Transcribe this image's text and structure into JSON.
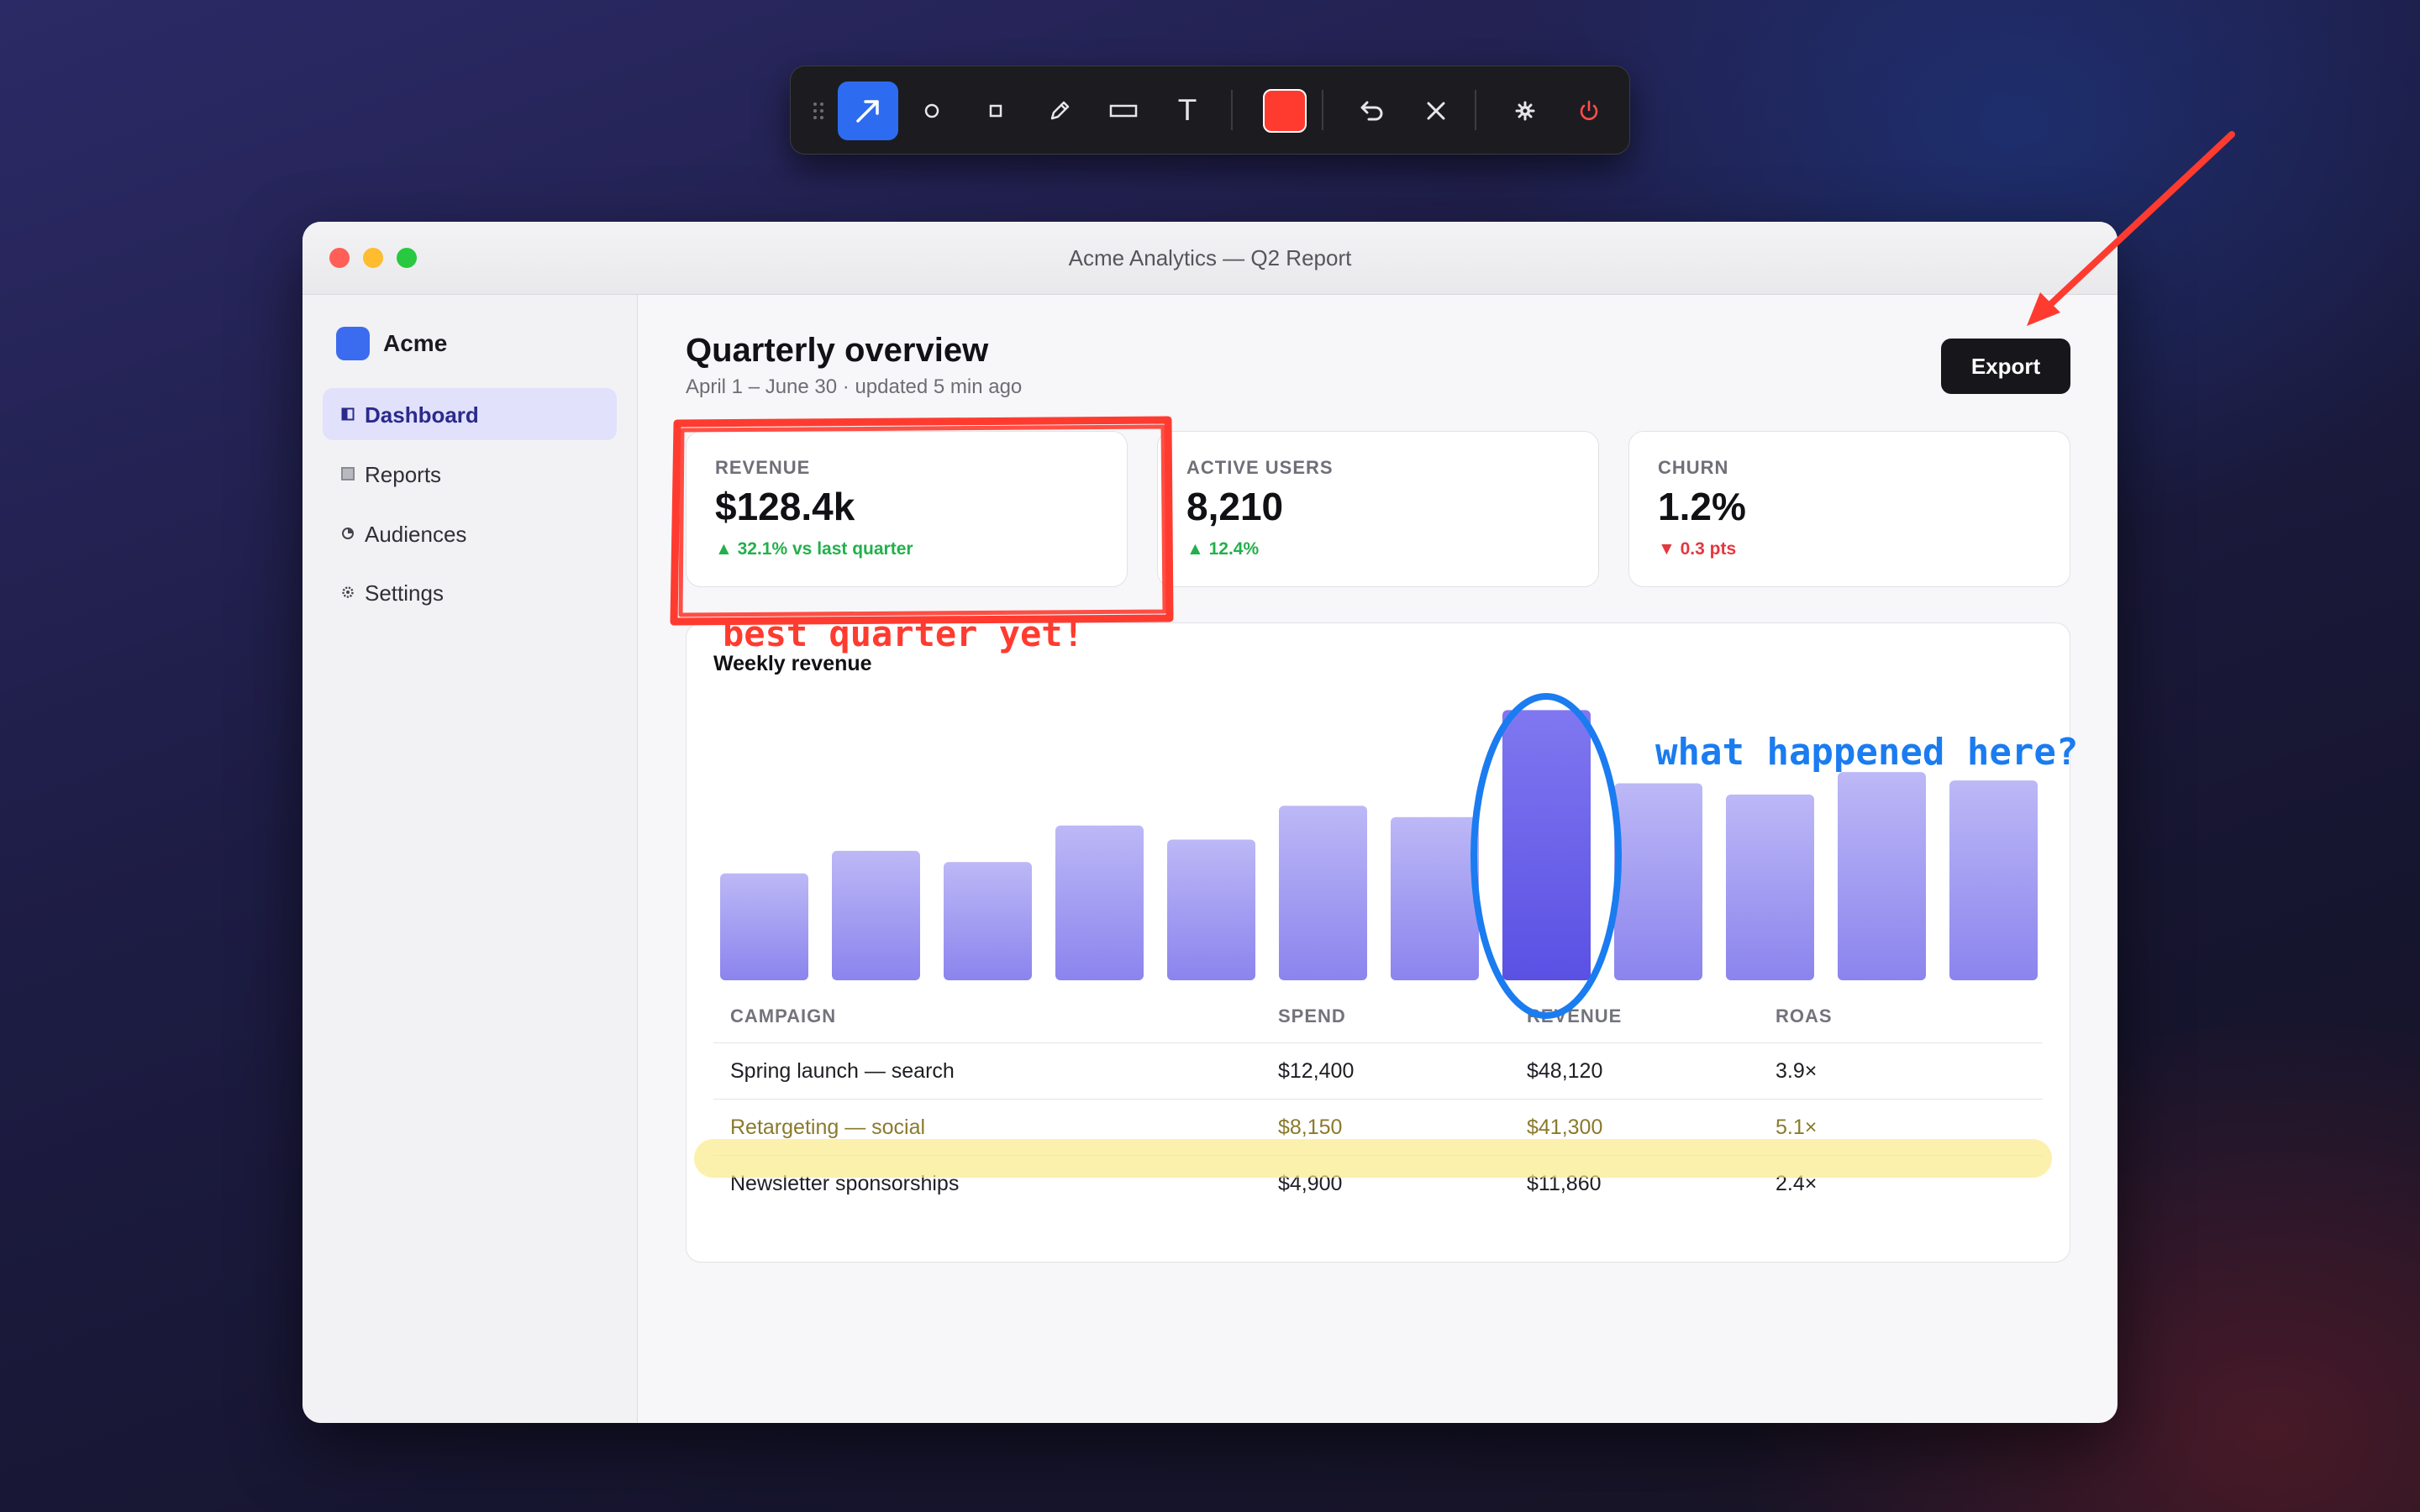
{
  "toolbar": {
    "tools": [
      "arrow-tool",
      "ellipse-tool",
      "square-tool",
      "pen-tool",
      "rectangle-tool",
      "text-tool"
    ],
    "active_tool": "arrow-tool",
    "text_tool_glyph": "T",
    "color_swatch": "#ff3b30",
    "actions": [
      "undo",
      "clear",
      "settings",
      "power"
    ]
  },
  "window": {
    "title": "Acme Analytics — Q2 Report",
    "traffic_lights": [
      "#ff5f57",
      "#febc2e",
      "#28c840"
    ]
  },
  "sidebar": {
    "brand": "Acme",
    "brand_color": "#3b6cf0",
    "items": [
      {
        "label": "Dashboard",
        "icon": "dashboard-icon",
        "active": true
      },
      {
        "label": "Reports",
        "icon": "reports-icon",
        "active": false
      },
      {
        "label": "Audiences",
        "icon": "audiences-icon",
        "active": false
      },
      {
        "label": "Settings",
        "icon": "settings-icon",
        "active": false
      }
    ]
  },
  "header": {
    "title": "Quarterly overview",
    "subtitle": "April 1 – June 30 · updated 5 min ago",
    "export_label": "Export"
  },
  "kpis": [
    {
      "label": "REVENUE",
      "value": "$128.4k",
      "delta": "▲ 32.1% vs last quarter",
      "trend": "up"
    },
    {
      "label": "ACTIVE USERS",
      "value": "8,210",
      "delta": "▲ 12.4%",
      "trend": "up"
    },
    {
      "label": "CHURN",
      "value": "1.2%",
      "delta": "▼ 0.3 pts",
      "trend": "down"
    }
  ],
  "chart_data": {
    "type": "bar",
    "title": "Weekly revenue",
    "values": [
      38,
      46,
      42,
      55,
      50,
      62,
      58,
      96,
      70,
      66,
      74,
      71
    ],
    "highlight_index": 7,
    "ylim": [
      0,
      100
    ],
    "colors": {
      "bar": "#9a94f0",
      "highlight": "#6359e8"
    }
  },
  "table": {
    "headers": [
      "CAMPAIGN",
      "SPEND",
      "REVENUE",
      "ROAS"
    ],
    "rows": [
      [
        "Spring launch — search",
        "$12,400",
        "$48,120",
        "3.9×"
      ],
      [
        "Retargeting — social",
        "$8,150",
        "$41,300",
        "5.1×"
      ],
      [
        "Newsletter sponsorships",
        "$4,900",
        "$11,860",
        "2.4×"
      ]
    ],
    "highlighted_row": 1
  },
  "annotations": {
    "revenue_note": "best quarter yet!",
    "chart_note": "what happened here?",
    "red": "#ff3b30",
    "blue": "#1a7cf0",
    "highlighter": "#fbe98a"
  }
}
